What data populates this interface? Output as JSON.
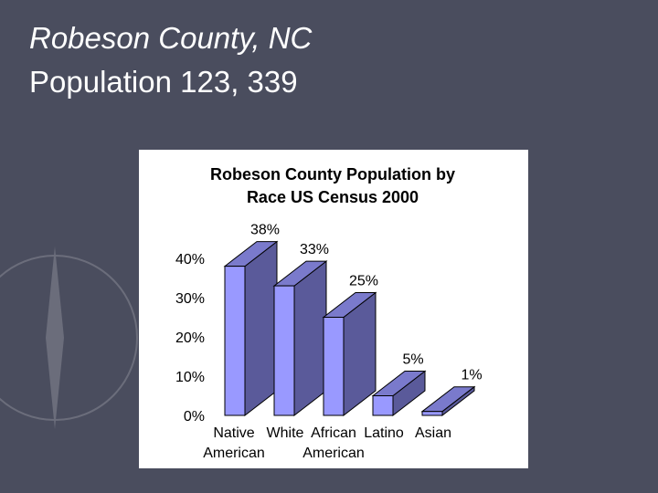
{
  "slide": {
    "title_line1": "Robeson County, NC",
    "title_line2": "Population 123, 339",
    "background_color": "#4a4d5e"
  },
  "chart_data": {
    "type": "bar",
    "title_line1": "Robeson County Population by",
    "title_line2": "Race US Census 2000",
    "categories": [
      [
        "Native",
        "American"
      ],
      [
        "White",
        ""
      ],
      [
        "African",
        "American"
      ],
      [
        "Latino",
        ""
      ],
      [
        "Asian",
        ""
      ]
    ],
    "values": [
      38,
      33,
      25,
      5,
      1
    ],
    "data_labels": [
      "38%",
      "33%",
      "25%",
      "5%",
      "1%"
    ],
    "y_ticks": [
      "0%",
      "10%",
      "20%",
      "30%",
      "40%"
    ],
    "ylim": [
      0,
      40
    ],
    "bar_front_color": "#9999ff",
    "bar_side_color": "#5a5a9a",
    "bar_top_color": "#7a7acc",
    "grid": false,
    "style": "3d-column"
  }
}
